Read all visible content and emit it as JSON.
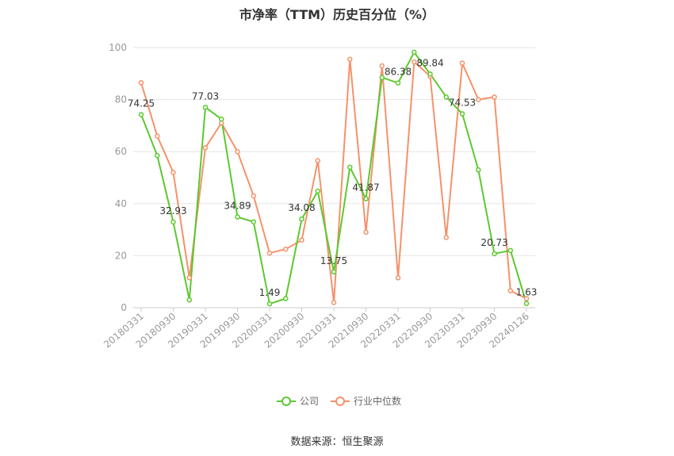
{
  "chart_data": {
    "type": "line",
    "title": "市净率（TTM）历史百分位（%）",
    "source_text": "数据来源：恒生聚源",
    "ylim": [
      0,
      100
    ],
    "yticks": [
      0,
      20,
      40,
      60,
      80,
      100
    ],
    "x": [
      "20180331",
      "20180630",
      "20180930",
      "20181231",
      "20190331",
      "20190630",
      "20190930",
      "20191231",
      "20200331",
      "20200630",
      "20200930",
      "20201231",
      "20210331",
      "20210630",
      "20210930",
      "20211231",
      "20220331",
      "20220630",
      "20220930",
      "20221231",
      "20230331",
      "20230630",
      "20230930",
      "20231231",
      "20240126"
    ],
    "x_tick_labels": [
      "20180331",
      "20180930",
      "20190331",
      "20190930",
      "20200331",
      "20200930",
      "20210331",
      "20210930",
      "20220331",
      "20220930",
      "20230331",
      "20230930",
      "20240126"
    ],
    "grid": true,
    "legend_position": "bottom",
    "series": [
      {
        "name": "公司",
        "color": "#5cc92f",
        "values": [
          74.25,
          58.5,
          32.93,
          3.0,
          77.03,
          72.5,
          34.89,
          33.0,
          1.49,
          3.5,
          34.08,
          44.8,
          13.75,
          54.0,
          41.87,
          88.5,
          86.38,
          98.2,
          89.84,
          81.0,
          74.53,
          53.0,
          20.73,
          22.0,
          1.63
        ]
      },
      {
        "name": "行业中位数",
        "color": "#f5926a",
        "values": [
          86.5,
          66.0,
          52.0,
          11.5,
          61.5,
          71.0,
          60.0,
          43.0,
          21.0,
          22.5,
          26.0,
          56.5,
          2.0,
          95.5,
          29.0,
          93.0,
          11.5,
          94.5,
          89.0,
          27.0,
          94.0,
          80.0,
          81.0,
          6.5,
          3.5
        ]
      }
    ],
    "data_labels": [
      {
        "series": 0,
        "index": 0,
        "text": "74.25"
      },
      {
        "series": 0,
        "index": 2,
        "text": "32.93"
      },
      {
        "series": 0,
        "index": 4,
        "text": "77.03"
      },
      {
        "series": 0,
        "index": 6,
        "text": "34.89"
      },
      {
        "series": 0,
        "index": 8,
        "text": "1.49"
      },
      {
        "series": 0,
        "index": 10,
        "text": "34.08"
      },
      {
        "series": 0,
        "index": 12,
        "text": "13.75"
      },
      {
        "series": 0,
        "index": 14,
        "text": "41.87"
      },
      {
        "series": 0,
        "index": 16,
        "text": "86.38"
      },
      {
        "series": 0,
        "index": 18,
        "text": "89.84"
      },
      {
        "series": 0,
        "index": 20,
        "text": "74.53"
      },
      {
        "series": 0,
        "index": 22,
        "text": "20.73"
      },
      {
        "series": 0,
        "index": 24,
        "text": "1.63"
      }
    ]
  }
}
